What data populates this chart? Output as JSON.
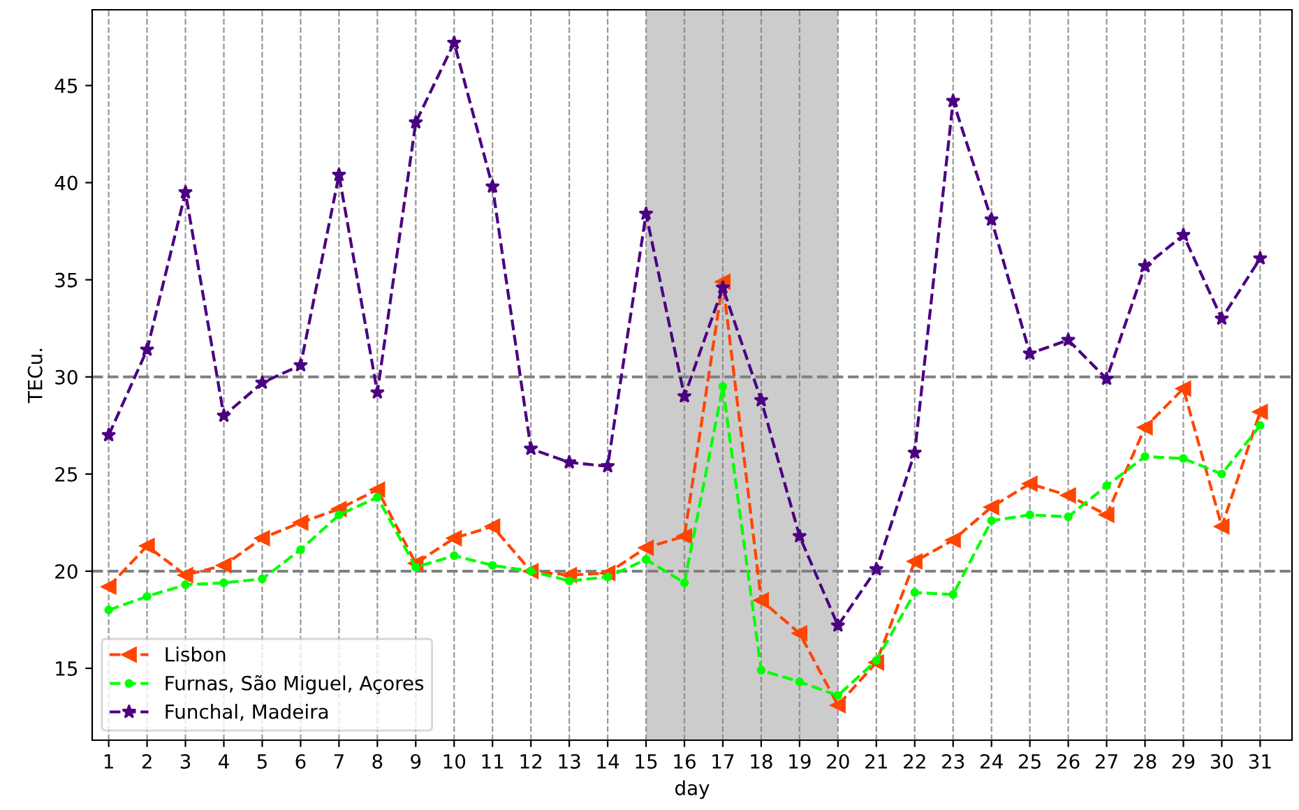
{
  "chart_data": {
    "type": "line",
    "xlabel": "day",
    "ylabel": "TECu.",
    "categories": [
      "1",
      "2",
      "3",
      "4",
      "5",
      "6",
      "7",
      "8",
      "9",
      "10",
      "11",
      "12",
      "13",
      "14",
      "15",
      "16",
      "17",
      "18",
      "19",
      "20",
      "21",
      "22",
      "23",
      "24",
      "25",
      "26",
      "27",
      "28",
      "29",
      "30",
      "31"
    ],
    "series": [
      {
        "name": "Lisbon",
        "color": "#ff4500",
        "marker": "triangle",
        "values": [
          19.2,
          21.3,
          19.8,
          20.3,
          21.7,
          22.5,
          23.2,
          24.2,
          20.4,
          21.7,
          22.3,
          20.0,
          19.8,
          19.9,
          21.2,
          21.8,
          34.9,
          18.5,
          16.8,
          13.1,
          15.3,
          20.5,
          21.6,
          23.3,
          24.5,
          23.9,
          22.9,
          27.4,
          29.4,
          22.3,
          28.2
        ]
      },
      {
        "name": "Furnas, São Miguel, Açores",
        "color": "#00ff00",
        "marker": "circle",
        "values": [
          18.0,
          18.7,
          19.3,
          19.4,
          19.6,
          21.1,
          22.9,
          23.8,
          20.2,
          20.8,
          20.3,
          20.0,
          19.5,
          19.7,
          20.6,
          19.4,
          29.5,
          14.9,
          14.3,
          13.6,
          15.4,
          18.9,
          18.8,
          22.6,
          22.9,
          22.8,
          24.4,
          25.9,
          25.8,
          25.0,
          27.5
        ]
      },
      {
        "name": "Funchal, Madeira",
        "color": "#4b0082",
        "marker": "star",
        "values": [
          27.0,
          31.4,
          39.5,
          28.0,
          29.7,
          30.6,
          40.4,
          29.2,
          43.1,
          47.2,
          39.8,
          26.3,
          25.6,
          25.4,
          38.4,
          29.0,
          34.6,
          28.8,
          21.8,
          17.2,
          20.1,
          26.1,
          44.2,
          38.1,
          31.2,
          31.9,
          29.9,
          35.7,
          37.3,
          33.0,
          36.1
        ]
      }
    ],
    "line_style": "dashed",
    "ylim": [
      11.3,
      48.9
    ],
    "yticks": [
      15,
      20,
      25,
      30,
      35,
      40,
      45
    ],
    "grid": "x",
    "legend": "bottom left",
    "ref_lines": [
      {
        "axis": "y",
        "value": 20,
        "color": "#808080",
        "line_style": "dashed"
      },
      {
        "axis": "y",
        "value": 30,
        "color": "#808080",
        "line_style": "dashed"
      }
    ],
    "bands": [
      {
        "axis": "x",
        "from": "15",
        "to": "20",
        "color": "#cccccc"
      }
    ]
  }
}
